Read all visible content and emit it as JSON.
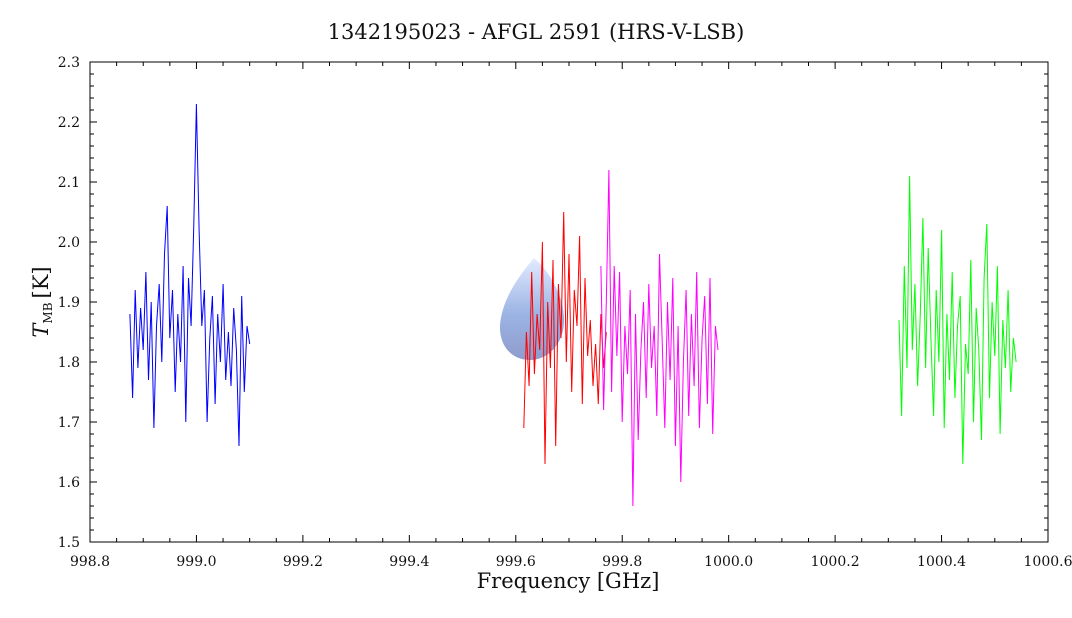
{
  "chart_data": {
    "type": "line",
    "title": "1342195023 - AFGL 2591 (HRS-V-LSB)",
    "xlabel": "Frequency [GHz]",
    "ylabel_main": "T",
    "ylabel_sub": "MB",
    "ylabel_unit": "[K]",
    "xlim": [
      998.8,
      1000.6
    ],
    "ylim": [
      1.5,
      2.3
    ],
    "x_ticks": [
      998.8,
      999.0,
      999.2,
      999.4,
      999.6,
      999.8,
      1000.0,
      1000.2,
      1000.4,
      1000.6
    ],
    "x_tick_labels": [
      "998.8",
      "999.0",
      "999.2",
      "999.4",
      "999.6",
      "999.8",
      "1000.0",
      "1000.2",
      "1000.4",
      "1000.6"
    ],
    "y_ticks": [
      1.5,
      1.6,
      1.7,
      1.8,
      1.9,
      2.0,
      2.1,
      2.2,
      2.3
    ],
    "y_tick_labels": [
      "1.5",
      "1.6",
      "1.7",
      "1.8",
      "1.9",
      "2.0",
      "2.1",
      "2.2",
      "2.3"
    ],
    "grid": false,
    "colors": {
      "blue": "#0000ff",
      "red": "#ff0000",
      "magenta": "#ff00ff",
      "green": "#00ff00",
      "logo": "#7f9fdc"
    },
    "series": [
      {
        "color": "#0000ff",
        "x": [
          998.875,
          998.88,
          998.885,
          998.89,
          998.895,
          998.9,
          998.905,
          998.91,
          998.915,
          998.92,
          998.925,
          998.93,
          998.935,
          998.94,
          998.945,
          998.95,
          998.955,
          998.96,
          998.965,
          998.97,
          998.975,
          998.98,
          998.985,
          998.99,
          998.995,
          999.0,
          999.005,
          999.01,
          999.015,
          999.02,
          999.025,
          999.03,
          999.035,
          999.04,
          999.045,
          999.05,
          999.055,
          999.06,
          999.065,
          999.07,
          999.075,
          999.08,
          999.085,
          999.09,
          999.095,
          999.1
        ],
        "values": [
          1.88,
          1.74,
          1.92,
          1.79,
          1.89,
          1.82,
          1.95,
          1.77,
          1.9,
          1.69,
          1.86,
          1.93,
          1.8,
          1.98,
          2.06,
          1.84,
          1.92,
          1.75,
          1.88,
          1.8,
          1.96,
          1.7,
          1.94,
          1.86,
          2.03,
          2.23,
          2.02,
          1.86,
          1.92,
          1.7,
          1.84,
          1.91,
          1.73,
          1.88,
          1.8,
          1.93,
          1.77,
          1.85,
          1.76,
          1.89,
          1.82,
          1.66,
          1.91,
          1.75,
          1.86,
          1.83
        ]
      },
      {
        "color": "#ff0000",
        "x": [
          999.615,
          999.62,
          999.625,
          999.63,
          999.635,
          999.64,
          999.645,
          999.65,
          999.655,
          999.66,
          999.665,
          999.67,
          999.675,
          999.68,
          999.685,
          999.69,
          999.695,
          999.7,
          999.705,
          999.71,
          999.715,
          999.72,
          999.725,
          999.73,
          999.735,
          999.74,
          999.745,
          999.75,
          999.755,
          999.76,
          999.765,
          999.77
        ],
        "values": [
          1.69,
          1.85,
          1.76,
          1.95,
          1.78,
          1.88,
          1.82,
          2.0,
          1.63,
          1.9,
          1.79,
          1.97,
          1.66,
          1.93,
          1.84,
          2.05,
          1.8,
          1.98,
          1.75,
          1.92,
          1.86,
          2.01,
          1.73,
          1.94,
          1.81,
          1.87,
          1.76,
          1.83,
          1.73,
          1.88,
          1.79,
          1.85
        ]
      },
      {
        "color": "#ff00ff",
        "x": [
          999.76,
          999.765,
          999.77,
          999.775,
          999.78,
          999.785,
          999.79,
          999.795,
          999.8,
          999.805,
          999.81,
          999.815,
          999.82,
          999.825,
          999.83,
          999.835,
          999.84,
          999.845,
          999.85,
          999.855,
          999.86,
          999.865,
          999.87,
          999.875,
          999.88,
          999.885,
          999.89,
          999.895,
          999.9,
          999.905,
          999.91,
          999.915,
          999.92,
          999.925,
          999.93,
          999.935,
          999.94,
          999.945,
          999.95,
          999.955,
          999.96,
          999.965,
          999.97,
          999.975,
          999.98
        ],
        "values": [
          1.96,
          1.72,
          1.9,
          2.12,
          1.75,
          1.96,
          1.81,
          1.95,
          1.7,
          1.86,
          1.78,
          1.92,
          1.56,
          1.88,
          1.67,
          1.82,
          1.9,
          1.74,
          1.93,
          1.79,
          1.86,
          1.71,
          1.98,
          1.84,
          1.69,
          1.9,
          1.77,
          1.94,
          1.66,
          1.86,
          1.6,
          1.8,
          1.92,
          1.71,
          1.88,
          1.76,
          1.95,
          1.69,
          1.84,
          1.91,
          1.73,
          1.94,
          1.68,
          1.86,
          1.82
        ]
      },
      {
        "color": "#00ff00",
        "x": [
          1000.32,
          1000.325,
          1000.33,
          1000.335,
          1000.34,
          1000.345,
          1000.35,
          1000.355,
          1000.36,
          1000.365,
          1000.37,
          1000.375,
          1000.38,
          1000.385,
          1000.39,
          1000.395,
          1000.4,
          1000.405,
          1000.41,
          1000.415,
          1000.42,
          1000.425,
          1000.43,
          1000.435,
          1000.44,
          1000.445,
          1000.45,
          1000.455,
          1000.46,
          1000.465,
          1000.47,
          1000.475,
          1000.48,
          1000.485,
          1000.49,
          1000.495,
          1000.5,
          1000.505,
          1000.51,
          1000.515,
          1000.52,
          1000.525,
          1000.53,
          1000.535,
          1000.54
        ],
        "values": [
          1.87,
          1.71,
          1.96,
          1.79,
          2.11,
          1.82,
          1.93,
          1.76,
          1.88,
          2.04,
          1.79,
          1.99,
          1.84,
          1.71,
          1.92,
          1.8,
          2.02,
          1.69,
          1.88,
          1.77,
          1.95,
          1.74,
          1.86,
          1.91,
          1.63,
          1.83,
          1.78,
          1.97,
          1.7,
          1.89,
          1.82,
          1.67,
          1.94,
          2.03,
          1.74,
          1.9,
          1.81,
          1.96,
          1.68,
          1.87,
          1.79,
          1.92,
          1.75,
          1.84,
          1.8
        ]
      }
    ]
  }
}
